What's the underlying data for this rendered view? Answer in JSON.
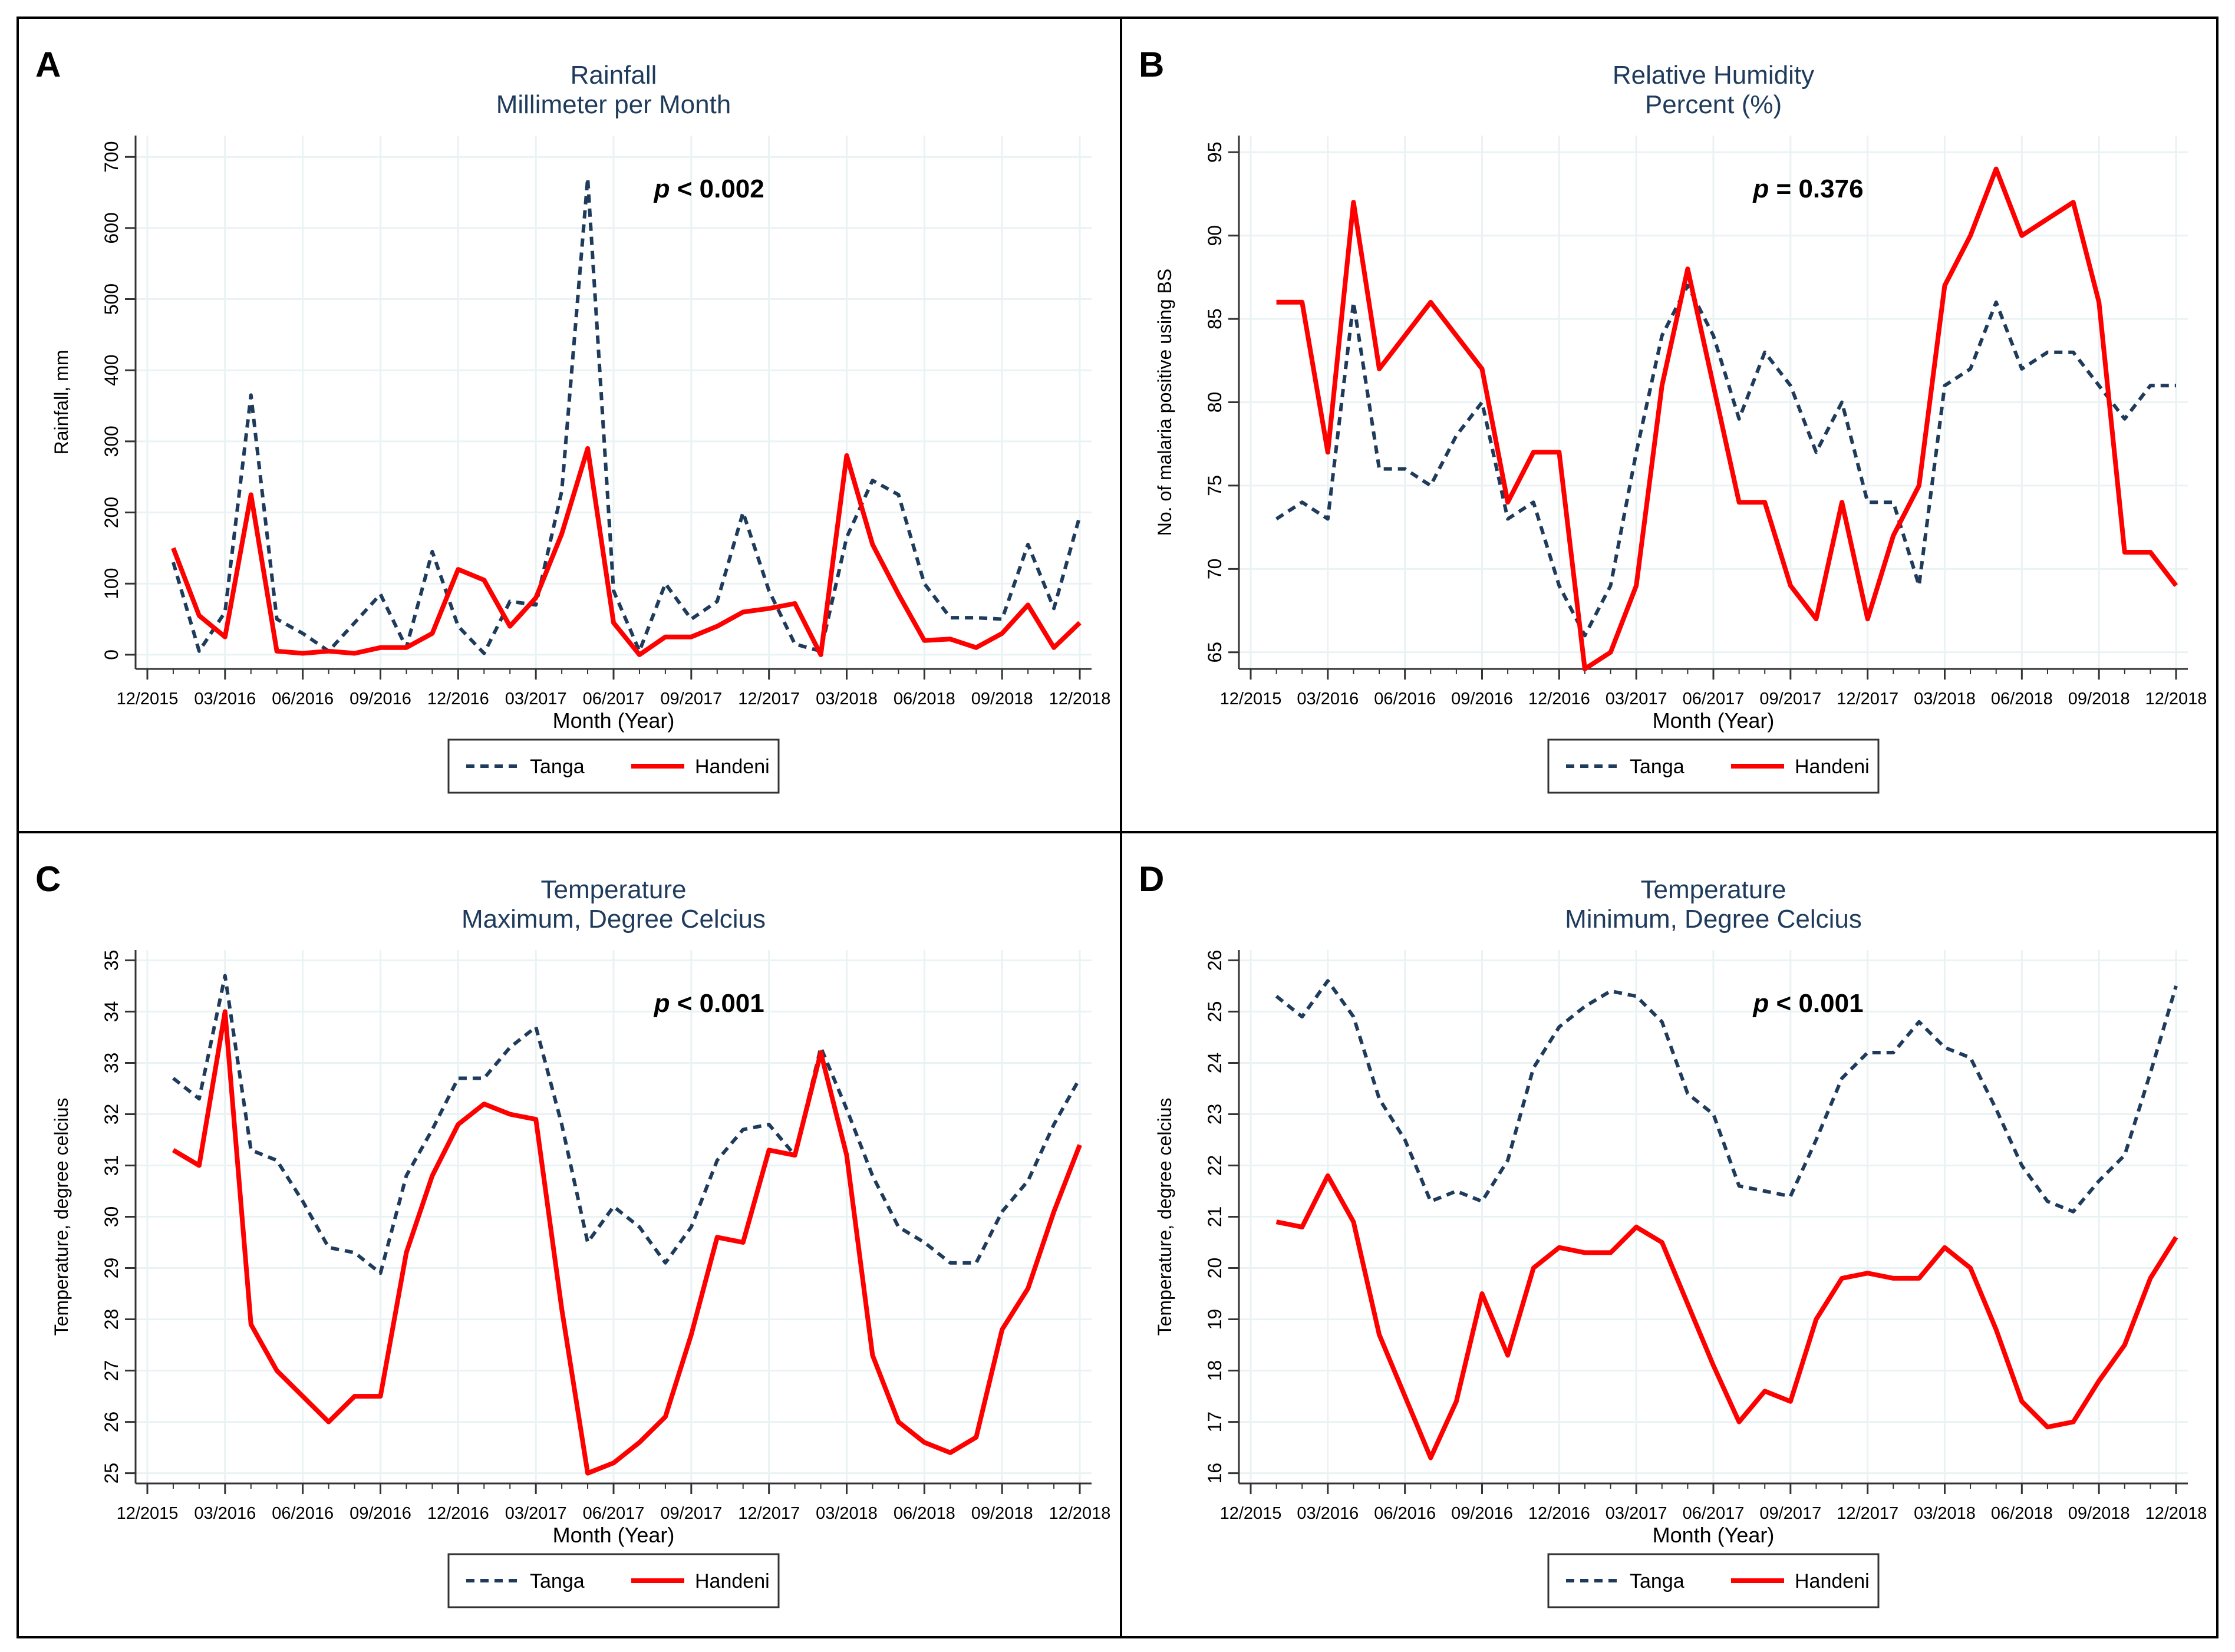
{
  "tick_months": [
    "12/2015",
    "03/2016",
    "06/2016",
    "09/2016",
    "12/2016",
    "03/2017",
    "06/2017",
    "09/2017",
    "12/2017",
    "03/2018",
    "06/2018",
    "09/2018",
    "12/2018"
  ],
  "colors": {
    "tanga": "#1f3b5c",
    "handeni": "#ff0000",
    "title": "#1f3b5c",
    "grid": "#eaf2f3",
    "axis": "#333333"
  },
  "chart_data": [
    {
      "panel": "A",
      "type": "line",
      "title": "Rainfall",
      "subtitle": "Millimeter per Month",
      "xlabel": "Month (Year)",
      "ylabel": "Rainfall, mm",
      "ylim": [
        -20,
        730
      ],
      "yticks": [
        0,
        100,
        200,
        300,
        400,
        500,
        600,
        700
      ],
      "annotation": {
        "italic": "p",
        "rest": " < 0.002"
      },
      "legend": [
        "Tanga",
        "Handeni"
      ],
      "series": [
        {
          "name": "Tanga",
          "style": "dashed",
          "values": [
            130,
            5,
            60,
            365,
            50,
            30,
            5,
            45,
            85,
            10,
            145,
            40,
            2,
            75,
            70,
            230,
            670,
            90,
            5,
            100,
            50,
            75,
            200,
            90,
            15,
            5,
            165,
            245,
            225,
            100,
            52,
            52,
            50,
            155,
            65,
            195
          ]
        },
        {
          "name": "Handeni",
          "style": "solid",
          "values": [
            150,
            55,
            25,
            225,
            5,
            2,
            5,
            2,
            10,
            10,
            30,
            120,
            105,
            40,
            80,
            170,
            290,
            45,
            0,
            25,
            25,
            40,
            60,
            65,
            72,
            0,
            280,
            155,
            85,
            20,
            22,
            10,
            30,
            70,
            10,
            45
          ]
        }
      ]
    },
    {
      "panel": "B",
      "type": "line",
      "title": "Relative Humidity",
      "subtitle": "Percent (%)",
      "xlabel": "Month (Year)",
      "ylabel": "No. of malaria positive using BS",
      "ylim": [
        64,
        96
      ],
      "yticks": [
        65,
        70,
        75,
        80,
        85,
        90,
        95
      ],
      "annotation": {
        "italic": "p",
        "rest": " = 0.376"
      },
      "legend": [
        "Tanga",
        "Handeni"
      ],
      "series": [
        {
          "name": "Tanga",
          "style": "dashed",
          "values": [
            73,
            74,
            73,
            86,
            76,
            76,
            75,
            78,
            80,
            73,
            74,
            69,
            66,
            69,
            77,
            84,
            87,
            84,
            79,
            83,
            81,
            77,
            80,
            74,
            74,
            69,
            81,
            82,
            86,
            82,
            83,
            83,
            81,
            79,
            81,
            81
          ]
        },
        {
          "name": "Handeni",
          "style": "solid",
          "values": [
            86,
            86,
            77,
            92,
            82,
            84,
            86,
            84,
            82,
            74,
            77,
            77,
            64,
            65,
            69,
            81,
            88,
            81,
            74,
            74,
            69,
            67,
            74,
            67,
            72,
            75,
            87,
            90,
            94,
            90,
            91,
            92,
            86,
            71,
            71,
            69
          ]
        }
      ]
    },
    {
      "panel": "C",
      "type": "line",
      "title": "Temperature",
      "subtitle": "Maximum, Degree Celcius",
      "xlabel": "Month (Year)",
      "ylabel": "Temperature, degree celcius",
      "ylim": [
        24.8,
        35.2
      ],
      "yticks": [
        25,
        26,
        27,
        28,
        29,
        30,
        31,
        32,
        33,
        34,
        35
      ],
      "annotation": {
        "italic": "p",
        "rest": " < 0.001"
      },
      "legend": [
        "Tanga",
        "Handeni"
      ],
      "series": [
        {
          "name": "Tanga",
          "style": "dashed",
          "values": [
            32.7,
            32.3,
            34.7,
            31.3,
            31.1,
            30.3,
            29.4,
            29.3,
            28.9,
            30.8,
            31.7,
            32.7,
            32.7,
            33.3,
            33.7,
            31.8,
            29.5,
            30.2,
            29.8,
            29.1,
            29.8,
            31.1,
            31.7,
            31.8,
            31.2,
            33.3,
            32.1,
            30.8,
            29.8,
            29.5,
            29.1,
            29.1,
            30.1,
            30.7,
            31.8,
            32.7
          ]
        },
        {
          "name": "Handeni",
          "style": "solid",
          "values": [
            31.3,
            31.0,
            34.0,
            27.9,
            27.0,
            26.5,
            26.0,
            26.5,
            26.5,
            29.3,
            30.8,
            31.8,
            32.2,
            32.0,
            31.9,
            28.2,
            25.0,
            25.2,
            25.6,
            26.1,
            27.7,
            29.6,
            29.5,
            31.3,
            31.2,
            33.2,
            31.2,
            27.3,
            26.0,
            25.6,
            25.4,
            25.7,
            27.8,
            28.6,
            30.1,
            31.4
          ]
        }
      ]
    },
    {
      "panel": "D",
      "type": "line",
      "title": "Temperature",
      "subtitle": "Minimum, Degree Celcius",
      "xlabel": "Month (Year)",
      "ylabel": "Temperature, degree celcius",
      "ylim": [
        15.8,
        26.2
      ],
      "yticks": [
        16,
        17,
        18,
        19,
        20,
        21,
        22,
        23,
        24,
        25,
        26
      ],
      "annotation": {
        "italic": "p",
        "rest": " < 0.001"
      },
      "legend": [
        "Tanga",
        "Handeni"
      ],
      "series": [
        {
          "name": "Tanga",
          "style": "dashed",
          "values": [
            25.3,
            24.9,
            25.6,
            24.9,
            23.3,
            22.5,
            21.3,
            21.5,
            21.3,
            22.1,
            23.9,
            24.7,
            25.1,
            25.4,
            25.3,
            24.8,
            23.4,
            23.0,
            21.6,
            21.5,
            21.4,
            22.5,
            23.7,
            24.2,
            24.2,
            24.8,
            24.3,
            24.1,
            23.1,
            22.0,
            21.3,
            21.1,
            21.7,
            22.2,
            23.8,
            25.5
          ]
        },
        {
          "name": "Handeni",
          "style": "solid",
          "values": [
            20.9,
            20.8,
            21.8,
            20.9,
            18.7,
            17.5,
            16.3,
            17.4,
            19.5,
            18.3,
            20.0,
            20.4,
            20.3,
            20.3,
            20.8,
            20.5,
            19.3,
            18.1,
            17.0,
            17.6,
            17.4,
            19.0,
            19.8,
            19.9,
            19.8,
            19.8,
            20.4,
            20.0,
            18.8,
            17.4,
            16.9,
            17.0,
            17.8,
            18.5,
            19.8,
            20.6
          ]
        }
      ]
    }
  ]
}
